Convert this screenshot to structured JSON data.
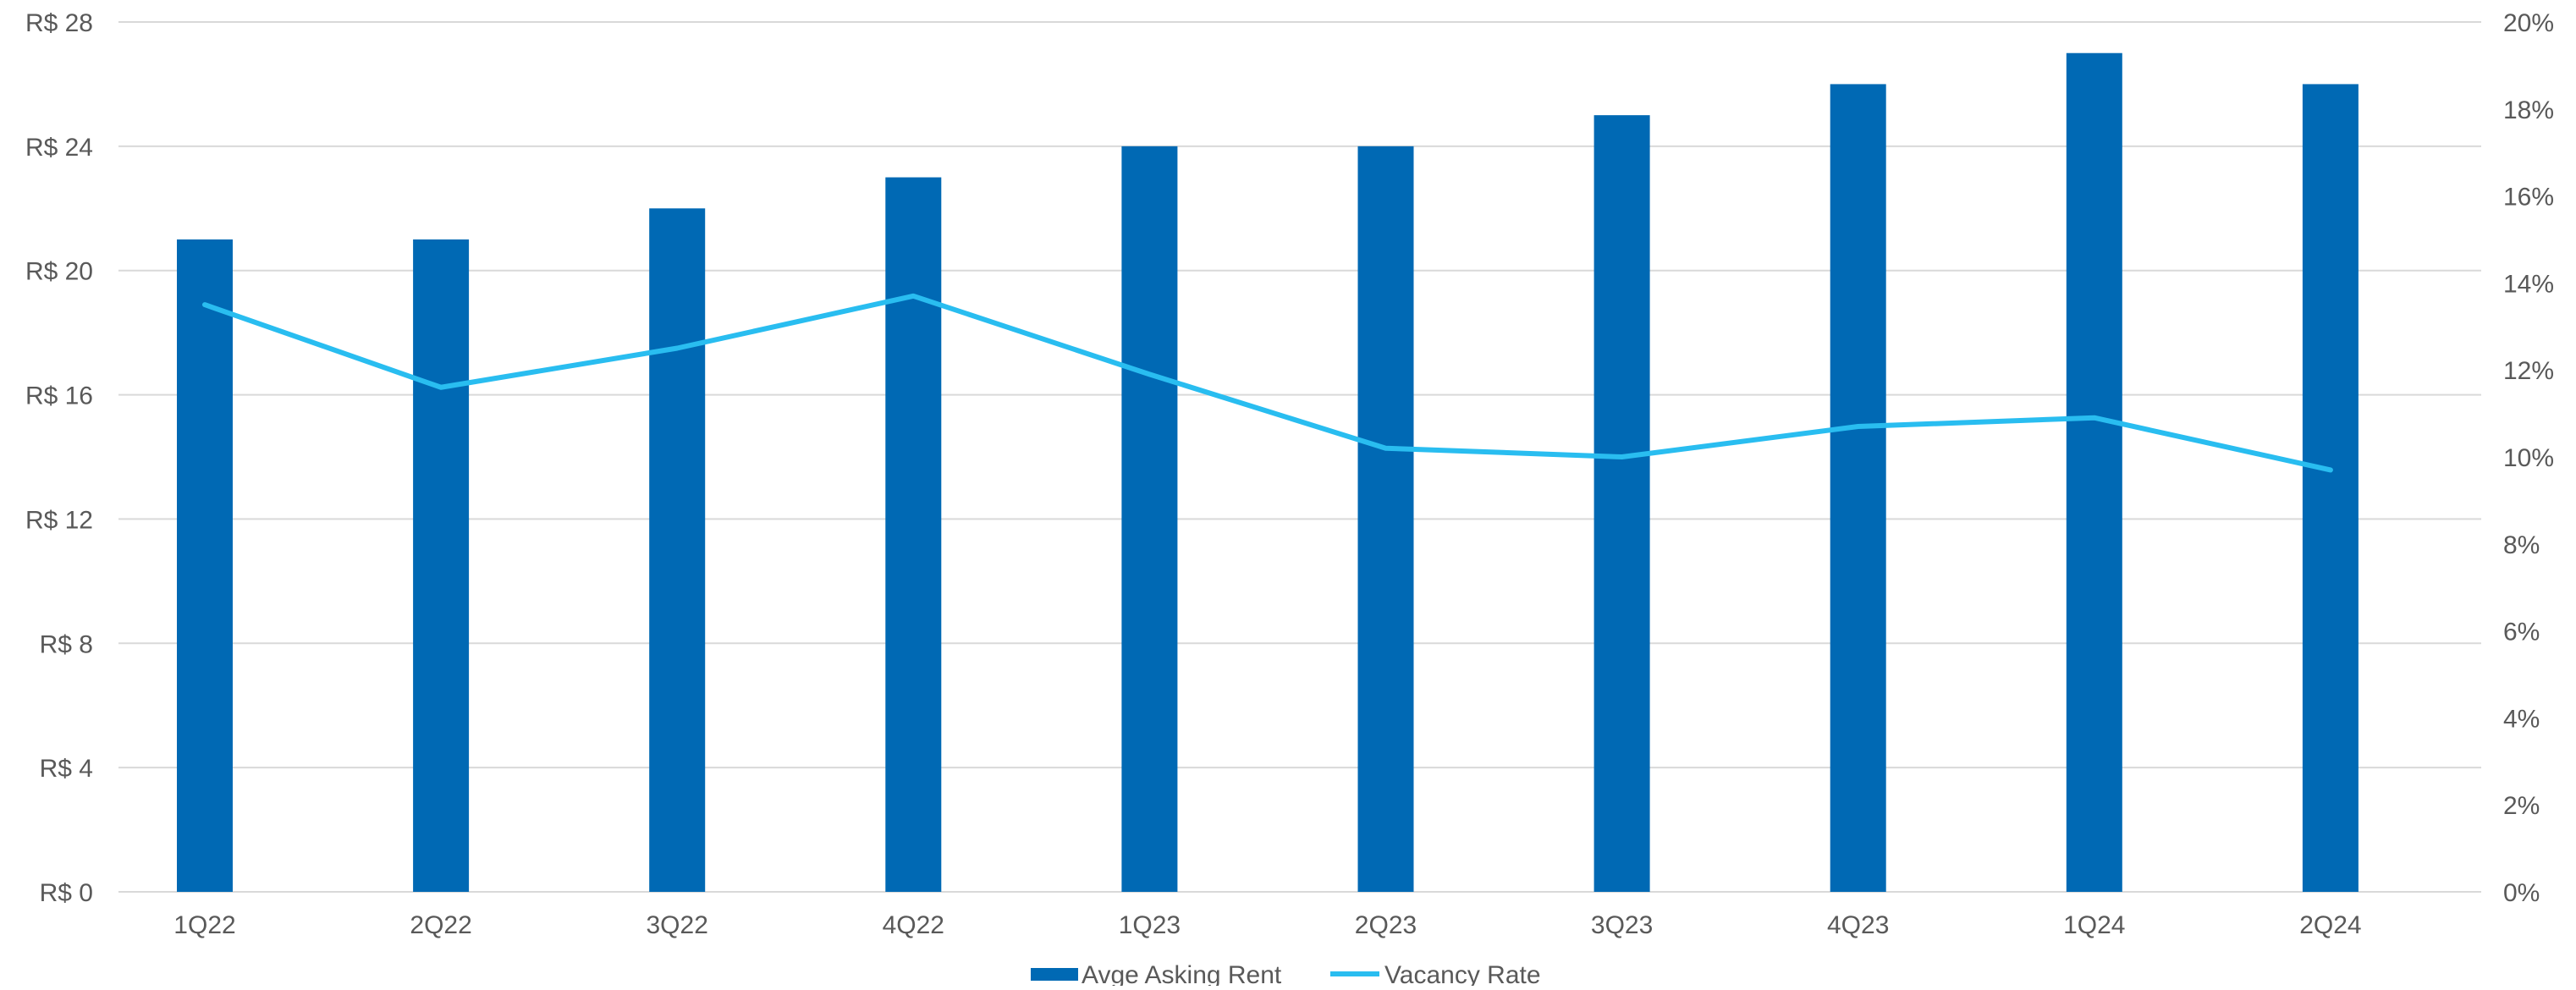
{
  "chart_data": {
    "type": "bar",
    "categories": [
      "1Q22",
      "2Q22",
      "3Q22",
      "4Q22",
      "1Q23",
      "2Q23",
      "3Q23",
      "4Q23",
      "1Q24",
      "2Q24"
    ],
    "series": [
      {
        "name": "Avge Asking Rent",
        "type": "bar",
        "axis": "left",
        "color": "#0069B4",
        "values": [
          21,
          21,
          22,
          23,
          24,
          24,
          25,
          26,
          27,
          26
        ]
      },
      {
        "name": "Vacancy Rate",
        "type": "line",
        "axis": "right",
        "color": "#29BDF0",
        "values": [
          13.5,
          11.6,
          12.5,
          13.7,
          11.9,
          10.2,
          10.0,
          10.7,
          10.9,
          9.7
        ]
      }
    ],
    "y_left": {
      "min": 0,
      "max": 28,
      "ticks": [
        0,
        4,
        8,
        12,
        16,
        20,
        24,
        28
      ],
      "tick_labels": [
        "R$ 0",
        "R$ 4",
        "R$ 8",
        "R$ 12",
        "R$ 16",
        "R$ 20",
        "R$ 24",
        "R$ 28"
      ]
    },
    "y_right": {
      "min": 0,
      "max": 20,
      "ticks": [
        0,
        2,
        4,
        6,
        8,
        10,
        12,
        14,
        16,
        18,
        20
      ],
      "tick_labels": [
        "0%",
        "2%",
        "4%",
        "6%",
        "8%",
        "10%",
        "12%",
        "14%",
        "16%",
        "18%",
        "20%"
      ]
    },
    "gridlines": true,
    "legend_position": "bottom",
    "gridline_color": "#D9D9D9",
    "text_color": "#595959"
  }
}
